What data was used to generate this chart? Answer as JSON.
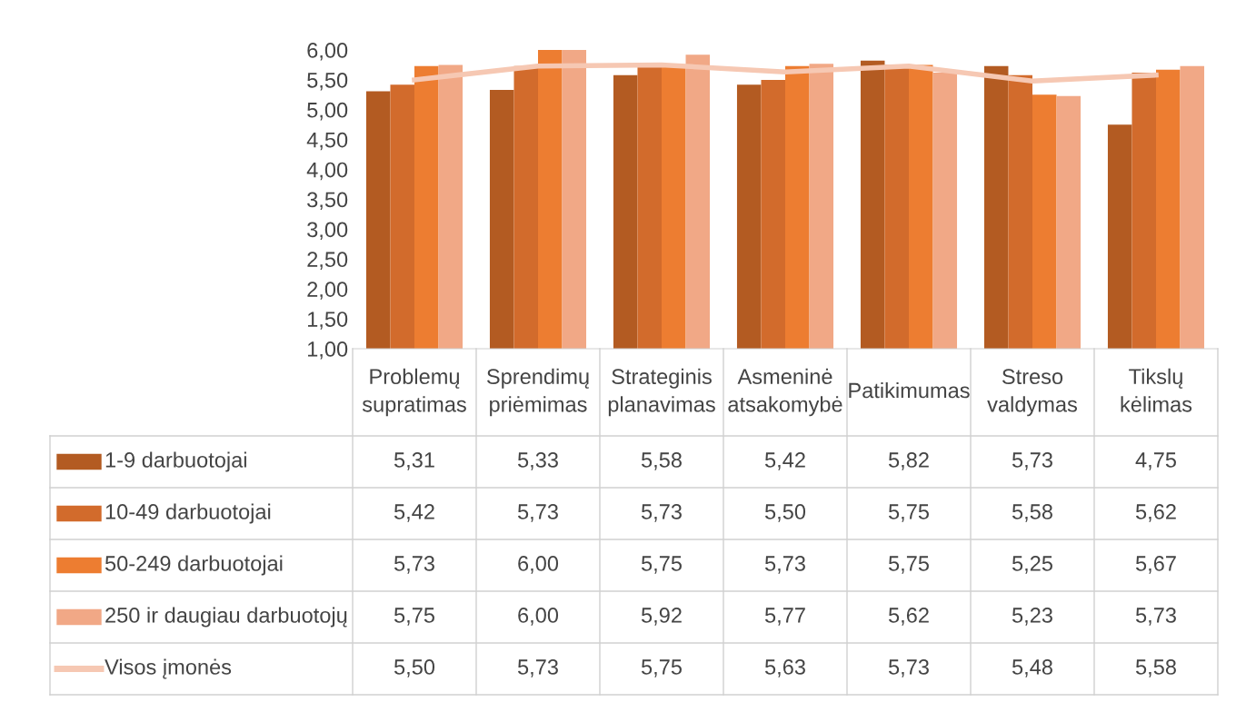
{
  "chart_data": {
    "type": "bar",
    "categories": [
      "Problemų supratimas",
      "Sprendimų priėmimas",
      "Strateginis planavimas",
      "Asmeninė atsakomybė",
      "Patikimumas",
      "Streso valdymas",
      "Tikslų kėlimas"
    ],
    "ylim": [
      1,
      6
    ],
    "yticks": [
      {
        "value": 1,
        "label": "1,00"
      },
      {
        "value": 1.5,
        "label": "1,50"
      },
      {
        "value": 2,
        "label": "2,00"
      },
      {
        "value": 2.5,
        "label": "2,50"
      },
      {
        "value": 3,
        "label": "3,00"
      },
      {
        "value": 3.5,
        "label": "3,50"
      },
      {
        "value": 4,
        "label": "4,00"
      },
      {
        "value": 4.5,
        "label": "4,50"
      },
      {
        "value": 5,
        "label": "5,00"
      },
      {
        "value": 5.5,
        "label": "5,50"
      },
      {
        "value": 6,
        "label": "6,00"
      }
    ],
    "grid": false,
    "legend": "bottom",
    "series": [
      {
        "name": "1-9 darbuotojai",
        "color": "#b35b22",
        "values": [
          5.31,
          5.33,
          5.58,
          5.42,
          5.82,
          5.73,
          4.75
        ],
        "value_labels": [
          "5,31",
          "5,33",
          "5,58",
          "5,42",
          "5,82",
          "5,73",
          "4,75"
        ]
      },
      {
        "name": "10-49 darbuotojai",
        "color": "#d26b2c",
        "values": [
          5.42,
          5.73,
          5.73,
          5.5,
          5.75,
          5.58,
          5.62
        ],
        "value_labels": [
          "5,42",
          "5,73",
          "5,73",
          "5,50",
          "5,75",
          "5,58",
          "5,62"
        ]
      },
      {
        "name": "50-249 darbuotojai",
        "color": "#ed7d31",
        "values": [
          5.73,
          6.0,
          5.75,
          5.73,
          5.75,
          5.25,
          5.67
        ],
        "value_labels": [
          "5,73",
          "6,00",
          "5,75",
          "5,73",
          "5,75",
          "5,25",
          "5,67"
        ]
      },
      {
        "name": "250 ir daugiau darbuotojų",
        "color": "#f1a886",
        "values": [
          5.75,
          6.0,
          5.92,
          5.77,
          5.62,
          5.23,
          5.73
        ],
        "value_labels": [
          "5,75",
          "6,00",
          "5,92",
          "5,77",
          "5,62",
          "5,23",
          "5,73"
        ]
      },
      {
        "name": "Visos įmonės",
        "type": "line",
        "color": "#f6c8b3",
        "line_style": "solid",
        "marker": "none",
        "values": [
          5.5,
          5.73,
          5.75,
          5.63,
          5.73,
          5.48,
          5.58
        ],
        "value_labels": [
          "5,50",
          "5,73",
          "5,75",
          "5,63",
          "5,73",
          "5,48",
          "5,58"
        ]
      }
    ]
  }
}
